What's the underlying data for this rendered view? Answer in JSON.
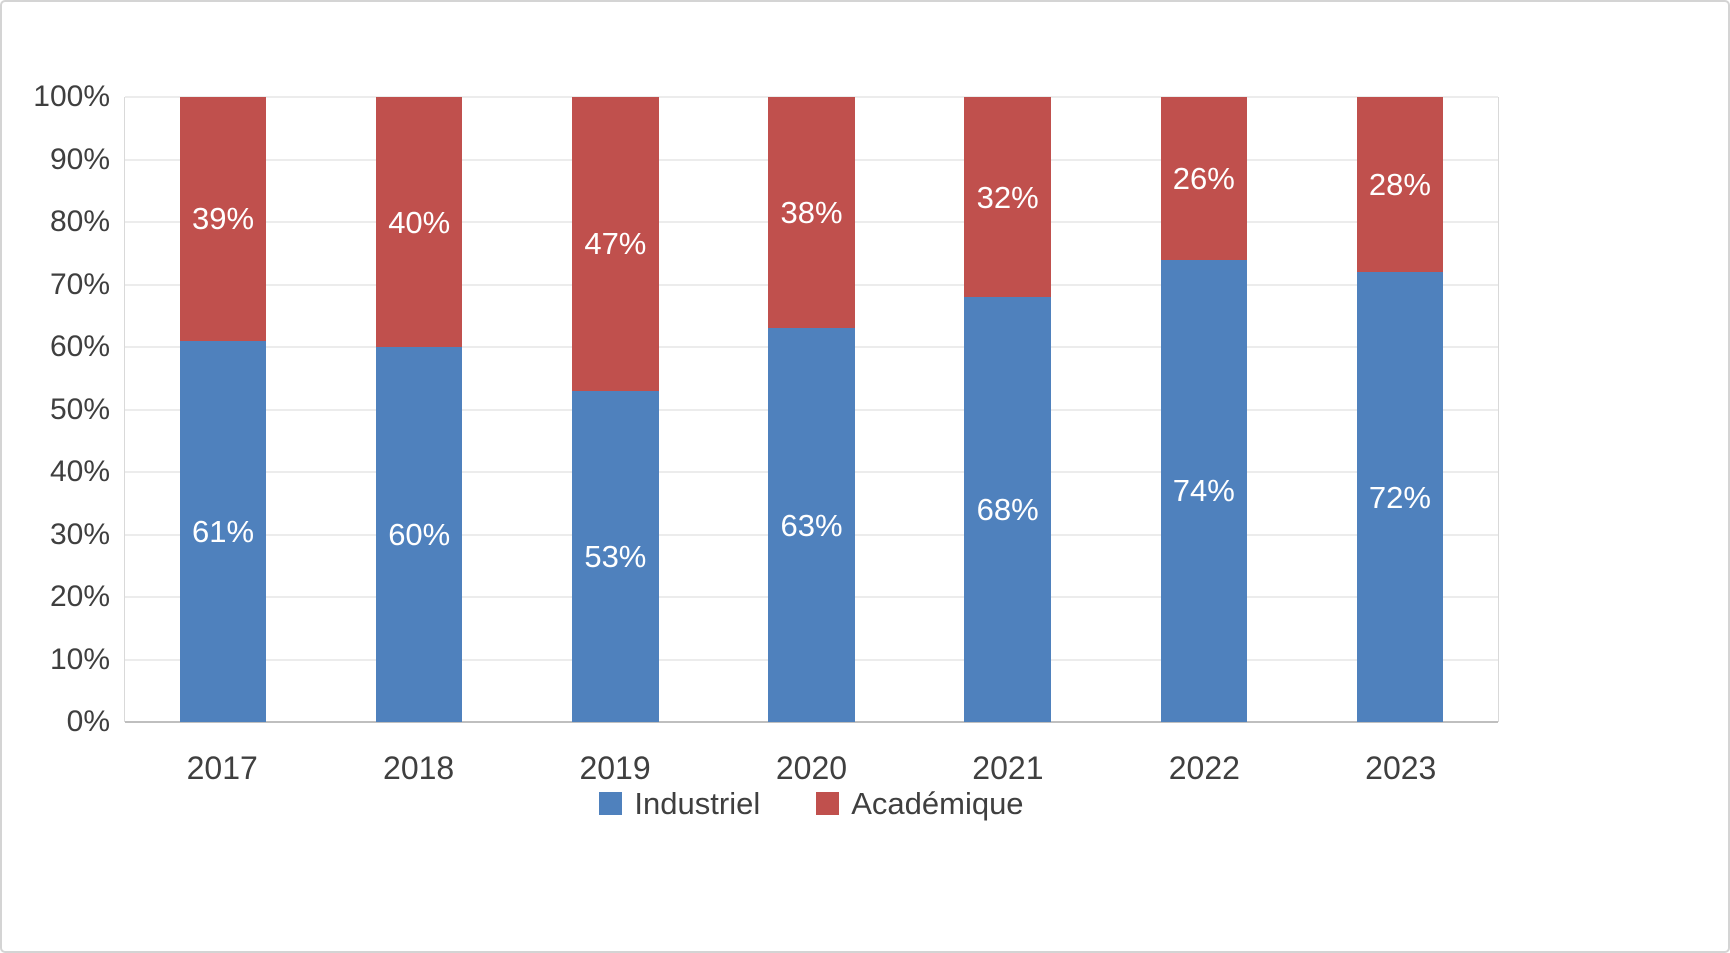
{
  "chart_data": {
    "type": "bar",
    "stacked": true,
    "percent_stacked": true,
    "title": "",
    "xlabel": "",
    "ylabel": "",
    "categories": [
      "2017",
      "2018",
      "2019",
      "2020",
      "2021",
      "2022",
      "2023"
    ],
    "series": [
      {
        "name": "Industriel",
        "color": "#4f81bd",
        "values": [
          61,
          60,
          53,
          63,
          68,
          74,
          72
        ],
        "labels": [
          "61%",
          "60%",
          "53%",
          "63%",
          "68%",
          "74%",
          "72%"
        ]
      },
      {
        "name": "Académique",
        "color": "#c0504d",
        "values": [
          39,
          40,
          47,
          38,
          32,
          26,
          28
        ],
        "labels": [
          "39%",
          "40%",
          "47%",
          "38%",
          "32%",
          "26%",
          "28%"
        ]
      }
    ],
    "ylim": [
      0,
      100
    ],
    "ytick_step": 10,
    "ytick_labels": [
      "0%",
      "10%",
      "20%",
      "30%",
      "40%",
      "50%",
      "60%",
      "70%",
      "80%",
      "90%",
      "100%"
    ],
    "grid": true,
    "gridline_color": "#d9d9d9",
    "axis_text_color": "#3f3f3f",
    "data_label_color": "#ffffff",
    "legend_position": "bottom"
  }
}
